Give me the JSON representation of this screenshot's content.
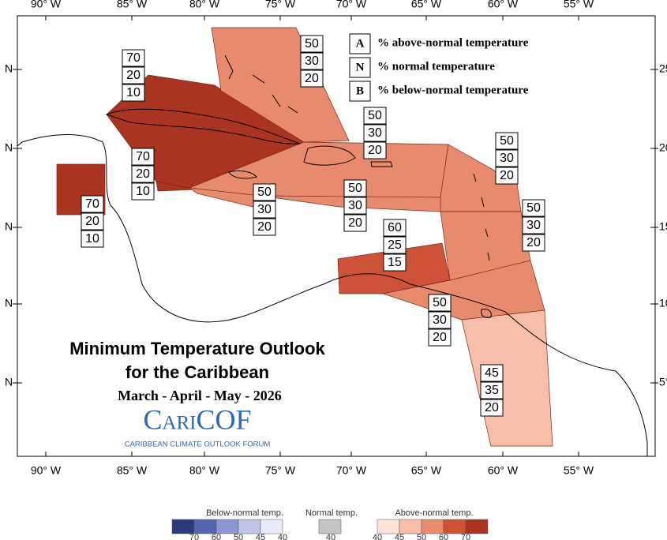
{
  "axes": {
    "lon_labels": [
      "90° W",
      "85° W",
      "80° W",
      "75° W",
      "70° W",
      "65° W",
      "60° W",
      "55° W"
    ],
    "lat_labels_left": [
      "N",
      "N",
      "N",
      "N",
      "N"
    ],
    "lat_labels_right": [
      "25",
      "20",
      "15",
      "10",
      "5°"
    ]
  },
  "legend": {
    "items": [
      {
        "letter": "A",
        "text": "% above-normal temperature"
      },
      {
        "letter": "N",
        "text": "% normal temperature"
      },
      {
        "letter": "B",
        "text": "% below-normal temperature"
      }
    ]
  },
  "title": {
    "line1": "Minimum Temperature Outlook",
    "line2": "for the Caribbean",
    "season": "March - April - May - 2026"
  },
  "logo": {
    "name": "CariCOF",
    "tagline": "CARIBBEAN CLIMATE OUTLOOK FORUM"
  },
  "regions": [
    {
      "above": 70,
      "normal": 20,
      "below": 10
    },
    {
      "above": 50,
      "normal": 30,
      "below": 20
    },
    {
      "above": 50,
      "normal": 30,
      "below": 20
    },
    {
      "above": 50,
      "normal": 30,
      "below": 20
    },
    {
      "above": 70,
      "normal": 20,
      "below": 10
    },
    {
      "above": 70,
      "normal": 20,
      "below": 10
    },
    {
      "above": 50,
      "normal": 30,
      "below": 20
    },
    {
      "above": 50,
      "normal": 30,
      "below": 20
    },
    {
      "above": 60,
      "normal": 25,
      "below": 15
    },
    {
      "above": 50,
      "normal": 30,
      "below": 20
    },
    {
      "above": 50,
      "normal": 30,
      "below": 20
    },
    {
      "above": 45,
      "normal": 35,
      "below": 20
    }
  ],
  "colorbar": {
    "below": {
      "title": "Below-normal temp.",
      "ticks": [
        70,
        60,
        50,
        45,
        40
      ],
      "colors": [
        "#2b3a7a",
        "#5565b0",
        "#8d97cf",
        "#c1c6e6",
        "#e8ebf7"
      ]
    },
    "normal": {
      "title": "Normal temp.",
      "ticks": [
        40
      ],
      "colors": [
        "#c4c4c4"
      ]
    },
    "above": {
      "title": "Above-normal temp.",
      "ticks": [
        40,
        45,
        50,
        60,
        70
      ],
      "colors": [
        "#fde3d8",
        "#f7bfa9",
        "#e88a6e",
        "#cd5237",
        "#a93421"
      ]
    }
  }
}
